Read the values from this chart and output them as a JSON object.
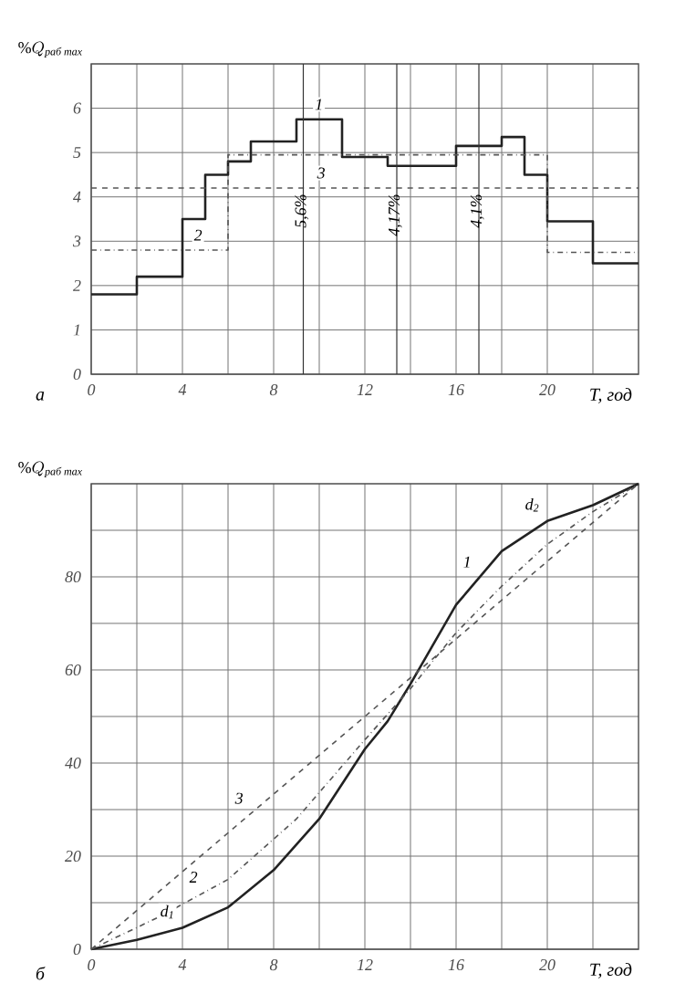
{
  "chart_data": [
    {
      "type": "step",
      "xlabel": "T, год",
      "ylabel": "\\%Q_{\\text{раб max}}",
      "xlim": [
        0,
        24
      ],
      "ylim": [
        0,
        7
      ],
      "xticks": [
        0,
        {
          "value": 2,
          "label": null
        },
        4,
        {
          "value": 6,
          "label": null
        },
        8,
        {
          "value": 10,
          "label": null
        },
        12,
        {
          "value": 14,
          "label": null
        },
        16,
        {
          "value": 18,
          "label": null
        },
        20,
        {
          "value": 22,
          "label": null
        }
      ],
      "yticks": [
        0,
        1,
        2,
        3,
        4,
        5,
        6
      ],
      "grid": true,
      "marker": "none",
      "series": [
        {
          "color": "#222222",
          "line_style": "solid",
          "x": [
            0,
            2,
            4,
            5,
            6,
            7,
            9,
            11,
            13,
            16,
            18,
            19,
            20,
            22,
            24
          ],
          "values": [
            1.8,
            2.2,
            3.5,
            4.5,
            4.8,
            5.25,
            5.75,
            4.9,
            4.7,
            5.15,
            5.35,
            4.5,
            3.45,
            2.5,
            2.5
          ]
        },
        {
          "color": "#555555",
          "line_style": "dashdot",
          "x": [
            0,
            6,
            20,
            24
          ],
          "values": [
            2.8,
            4.95,
            2.75,
            2.75
          ]
        },
        {
          "type": "line",
          "color": "#555555",
          "line_style": "dashed",
          "x": [
            0,
            24
          ],
          "values": [
            4.2,
            4.2
          ]
        }
      ],
      "ref_lines": [
        {
          "axis": "x",
          "value": 9.3
        },
        {
          "axis": "x",
          "value": 13.4
        },
        {
          "axis": "x",
          "value": 17
        }
      ],
      "annotations": [
        {
          "text": "1",
          "x": 10.5,
          "y": 5.75
        },
        {
          "text": "2",
          "x": 5.2,
          "y": 2.8
        },
        {
          "text": "3",
          "x": 10.6,
          "y": 4.2
        },
        {
          "text": "5,6%",
          "x": 9.3,
          "y": 4.2
        },
        {
          "text": "4,17%",
          "x": 13.4,
          "y": 4.2
        },
        {
          "text": "4,1%",
          "x": 17,
          "y": 4.2
        },
        "а"
      ]
    },
    {
      "type": "line",
      "xlabel": "T, год",
      "ylabel": "\\%Q_{\\text{раб max}}",
      "xlim": [
        0,
        24
      ],
      "ylim": [
        0,
        100
      ],
      "xticks": [
        0,
        {
          "value": 2,
          "label": null
        },
        4,
        {
          "value": 6,
          "label": null
        },
        8,
        {
          "value": 10,
          "label": null
        },
        12,
        {
          "value": 14,
          "label": null
        },
        16,
        {
          "value": 18,
          "label": null
        },
        20,
        {
          "value": 22,
          "label": null
        }
      ],
      "yticks": [
        0,
        {
          "value": 10,
          "label": null
        },
        20,
        {
          "value": 30,
          "label": null
        },
        40,
        {
          "value": 50,
          "label": null
        },
        60,
        {
          "value": 70,
          "label": null
        },
        80,
        {
          "value": 90,
          "label": null
        }
      ],
      "grid": true,
      "marker": "none",
      "series": [
        {
          "color": "#222222",
          "line_style": "solid",
          "x": [
            0,
            2,
            4,
            6,
            8,
            10,
            12,
            13,
            14,
            16,
            18,
            20,
            22,
            24
          ],
          "values": [
            0,
            2,
            4.6,
            9,
            17,
            28,
            43,
            49,
            57,
            74,
            85.5,
            92,
            95.4,
            100
          ]
        },
        {
          "color": "#555555",
          "line_style": "dashdot",
          "x": [
            0,
            3,
            6,
            9,
            12,
            14,
            16,
            18,
            20,
            22,
            24
          ],
          "values": [
            0,
            7,
            15,
            28,
            45,
            56,
            68,
            78,
            87,
            94,
            100
          ]
        },
        {
          "color": "#555555",
          "line_style": "dashed",
          "x": [
            0,
            24
          ],
          "values": [
            0,
            100
          ]
        }
      ],
      "annotations": [
        {
          "text": "1",
          "x": 17,
          "y": 80
        },
        {
          "text": "2",
          "x": 5,
          "y": 12.3
        },
        {
          "text": "3",
          "x": 7,
          "y": 29.2
        },
        {
          "text": "d$_{1}$",
          "x": 4,
          "y": 4.6
        },
        {
          "text": "d$_{2}$",
          "x": 20,
          "y": 92
        },
        "б"
      ]
    }
  ]
}
